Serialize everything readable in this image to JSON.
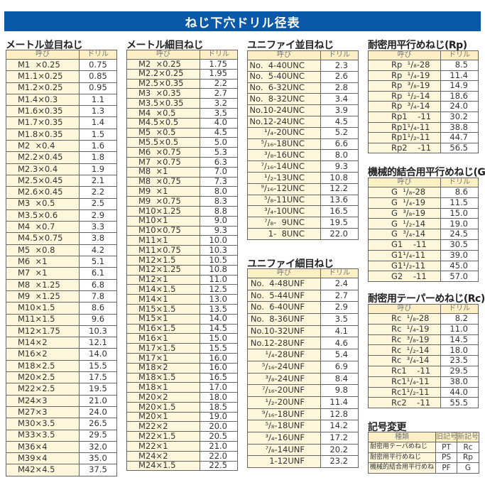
{
  "title": "ねじ下穴ドリル径表",
  "header": {
    "name": "呼び",
    "drill": "ドリル"
  },
  "colors": {
    "title_bar": "#0a59a8",
    "name_cell": "#fdf6da",
    "header_cell": "#fcefc4"
  },
  "tables": {
    "metric_coarse": {
      "title": "メートル並目ねじ",
      "rows": [
        [
          "M1  ×0.25",
          "0.75"
        ],
        [
          "M1.1×0.25",
          "0.85"
        ],
        [
          "M1.2×0.25",
          "0.95"
        ],
        [
          "M1.4×0.3",
          "1.1"
        ],
        [
          "M1.6×0.35",
          "1.3"
        ],
        [
          "M1.7×0.35",
          "1.4"
        ],
        [
          "M1.8×0.35",
          "1.5"
        ],
        [
          "M2  ×0.4",
          "1.6"
        ],
        [
          "M2.2×0.45",
          "1.8"
        ],
        [
          "M2.3×0.4",
          "1.9"
        ],
        [
          "M2.5×0.45",
          "2.1"
        ],
        [
          "M2.6×0.45",
          "2.2"
        ],
        [
          "M3  ×0.5",
          "2.5"
        ],
        [
          "M3.5×0.6",
          "2.9"
        ],
        [
          "M4  ×0.7",
          "3.3"
        ],
        [
          "M4.5×0.75",
          "3.8"
        ],
        [
          "M5  ×0.8",
          "4.2"
        ],
        [
          "M6  ×1",
          "5.1"
        ],
        [
          "M7  ×1",
          "6.1"
        ],
        [
          "M8  ×1.25",
          "6.8"
        ],
        [
          "M9  ×1.25",
          "7.8"
        ],
        [
          "M10×1.5",
          "8.6"
        ],
        [
          "M11×1.5",
          "9.6"
        ],
        [
          "M12×1.75",
          "10.3"
        ],
        [
          "M14×2",
          "12.1"
        ],
        [
          "M16×2",
          "14.0"
        ],
        [
          "M18×2.5",
          "15.5"
        ],
        [
          "M20×2.5",
          "17.5"
        ],
        [
          "M22×2.5",
          "19.5"
        ],
        [
          "M24×3",
          "21.0"
        ],
        [
          "M27×3",
          "24.0"
        ],
        [
          "M30×3.5",
          "26.5"
        ],
        [
          "M33×3.5",
          "29.5"
        ],
        [
          "M36×4",
          "32.0"
        ],
        [
          "M39×4",
          "35.0"
        ],
        [
          "M42×4.5",
          "37.5"
        ]
      ]
    },
    "metric_fine": {
      "title": "メートル細目ねじ",
      "rows": [
        [
          "M2  ×0.25",
          "1.75"
        ],
        [
          "M2.2×0.25",
          "1.95"
        ],
        [
          "M2.5×0.35",
          "2.2"
        ],
        [
          "M3  ×0.35",
          "2.7"
        ],
        [
          "M3.5×0.35",
          "3.2"
        ],
        [
          "M4  ×0.5",
          "3.5"
        ],
        [
          "M4.5×0.5",
          "4.0"
        ],
        [
          "M5  ×0.5",
          "4.5"
        ],
        [
          "M5.5×0.5",
          "5.0"
        ],
        [
          "M6  ×0.75",
          "5.3"
        ],
        [
          "M7  ×0.75",
          "6.3"
        ],
        [
          "M8  ×1",
          "7.0"
        ],
        [
          "M8  ×0.75",
          "7.3"
        ],
        [
          "M9  ×1",
          "8.0"
        ],
        [
          "M9  ×0.75",
          "8.3"
        ],
        [
          "M10×1.25",
          "8.8"
        ],
        [
          "M10×1",
          "9.0"
        ],
        [
          "M10×0.75",
          "9.3"
        ],
        [
          "M11×1",
          "10.0"
        ],
        [
          "M11×0.75",
          "10.3"
        ],
        [
          "M12×1.5",
          "10.5"
        ],
        [
          "M12×1.25",
          "10.8"
        ],
        [
          "M12×1",
          "11.0"
        ],
        [
          "M14×1.5",
          "12.5"
        ],
        [
          "M14×1",
          "13.0"
        ],
        [
          "M15×1.5",
          "13.5"
        ],
        [
          "M15×1",
          "14.0"
        ],
        [
          "M16×1.5",
          "14.5"
        ],
        [
          "M16×1",
          "15.0"
        ],
        [
          "M17×1.5",
          "15.5"
        ],
        [
          "M17×1",
          "16.0"
        ],
        [
          "M18×2",
          "16.0"
        ],
        [
          "M18×1.5",
          "16.5"
        ],
        [
          "M18×1",
          "17.0"
        ],
        [
          "M20×2",
          "18.0"
        ],
        [
          "M20×1.5",
          "18.5"
        ],
        [
          "M20×1",
          "19.0"
        ],
        [
          "M22×2",
          "20.0"
        ],
        [
          "M22×1.5",
          "20.5"
        ],
        [
          "M22×1",
          "21.0"
        ],
        [
          "M24×2",
          "22.0"
        ],
        [
          "M24×1.5",
          "22.5"
        ]
      ]
    },
    "unc": {
      "title": "ユニファイ並目ねじ",
      "rows": [
        [
          "No.  4-40UNC",
          "2.3"
        ],
        [
          "No.  5-40UNC",
          "2.6"
        ],
        [
          "No.  6-32UNC",
          "2.8"
        ],
        [
          "No.  8-32UNC",
          "3.4"
        ],
        [
          "No.10-24UNC",
          "3.9"
        ],
        [
          "No.12-24UNC",
          "4.5"
        ],
        [
          "¹/₄-20UNC",
          "5.2"
        ],
        [
          "⁵/₁₆-18UNC",
          "6.6"
        ],
        [
          "³/₈-16UNC",
          "8.0"
        ],
        [
          "⁷/₁₆-14UNC",
          "9.3"
        ],
        [
          "¹/₂-13UNC",
          "10.8"
        ],
        [
          "⁹/₁₆-12UNC",
          "12.2"
        ],
        [
          "⁵/₈-11UNC",
          "13.6"
        ],
        [
          "³/₄-10UNC",
          "16.5"
        ],
        [
          "⁷/₈-  9UNC",
          "19.5"
        ],
        [
          "1-  8UNC",
          "22.0"
        ]
      ]
    },
    "unf": {
      "title": "ユニファイ細目ねじ",
      "rows": [
        [
          "No.  4-48UNF",
          "2.4"
        ],
        [
          "No.  5-44UNF",
          "2.7"
        ],
        [
          "No.  6-40UNF",
          "2.9"
        ],
        [
          "No.  8-36UNF",
          "3.5"
        ],
        [
          "No.10-32UNF",
          "4.1"
        ],
        [
          "No.12-28UNF",
          "4.6"
        ],
        [
          "¹/₄-28UNF",
          "5.4"
        ],
        [
          "⁵/₁₆-24UNF",
          "6.9"
        ],
        [
          "³/₈-24UNF",
          "8.4"
        ],
        [
          "⁷/₁₆-20UNF",
          "9.8"
        ],
        [
          "¹/₂-20UNF",
          "11.4"
        ],
        [
          "⁹/₁₆-18UNF",
          "12.8"
        ],
        [
          "⁵/₈-18UNF",
          "14.2"
        ],
        [
          "³/₄-16UNF",
          "17.2"
        ],
        [
          "⁷/₈-14UNF",
          "20.2"
        ],
        [
          "1-12UNF",
          "23.2"
        ]
      ]
    },
    "rp": {
      "title": "耐密用平行めねじ(Rp)",
      "rows": [
        [
          "Rp  ¹/₈-28",
          "8.5"
        ],
        [
          "Rp  ¹/₄-19",
          "11.4"
        ],
        [
          "Rp  ³/₈-19",
          "14.9"
        ],
        [
          "Rp  ¹/₂-14",
          "18.6"
        ],
        [
          "Rp  ³/₄-14",
          "24.0"
        ],
        [
          "Rp1    -11",
          "30.2"
        ],
        [
          "Rp1¹/₄-11",
          "38.8"
        ],
        [
          "Rp1¹/₂-11",
          "44.7"
        ],
        [
          "Rp2    -11",
          "56.5"
        ]
      ]
    },
    "g": {
      "title": "機械的結合用平行めねじ(G)",
      "rows": [
        [
          "G  ¹/₈-28",
          "8.6"
        ],
        [
          "G  ¹/₄-19",
          "11.5"
        ],
        [
          "G  ³/₈-19",
          "15.0"
        ],
        [
          "G  ¹/₂-14",
          "19.0"
        ],
        [
          "G  ³/₄-14",
          "24.5"
        ],
        [
          "G1    -11",
          "30.5"
        ],
        [
          "G1¹/₄-11",
          "39.0"
        ],
        [
          "G1¹/₂-11",
          "45.0"
        ],
        [
          "G2    -11",
          "57.0"
        ]
      ]
    },
    "rc": {
      "title": "耐密用テーパーめねじ(Rc)",
      "rows": [
        [
          "Rc  ¹/₈-28",
          "8.2"
        ],
        [
          "Rc  ¹/₄-19",
          "11.0"
        ],
        [
          "Rc  ³/₈-19",
          "14.5"
        ],
        [
          "Rc  ¹/₂-14",
          "18.0"
        ],
        [
          "Rc  ³/₄-14",
          "23.5"
        ],
        [
          "Rc1    -11",
          "29.5"
        ],
        [
          "Rc1¹/₄-11",
          "38.0"
        ],
        [
          "Rc1¹/₂-11",
          "44.0"
        ],
        [
          "Rc2    -11",
          "55.5"
        ]
      ]
    }
  },
  "symbol_change": {
    "title": "記号変更",
    "headers": [
      "種類",
      "旧記号",
      "新記号"
    ],
    "rows": [
      [
        "耐密用テーパめねじ",
        "PT",
        "Rc"
      ],
      [
        "耐密用平行めねじ",
        "PS",
        "Rp"
      ],
      [
        "機械的結合用平行めねじ",
        "PF",
        "G"
      ]
    ]
  }
}
